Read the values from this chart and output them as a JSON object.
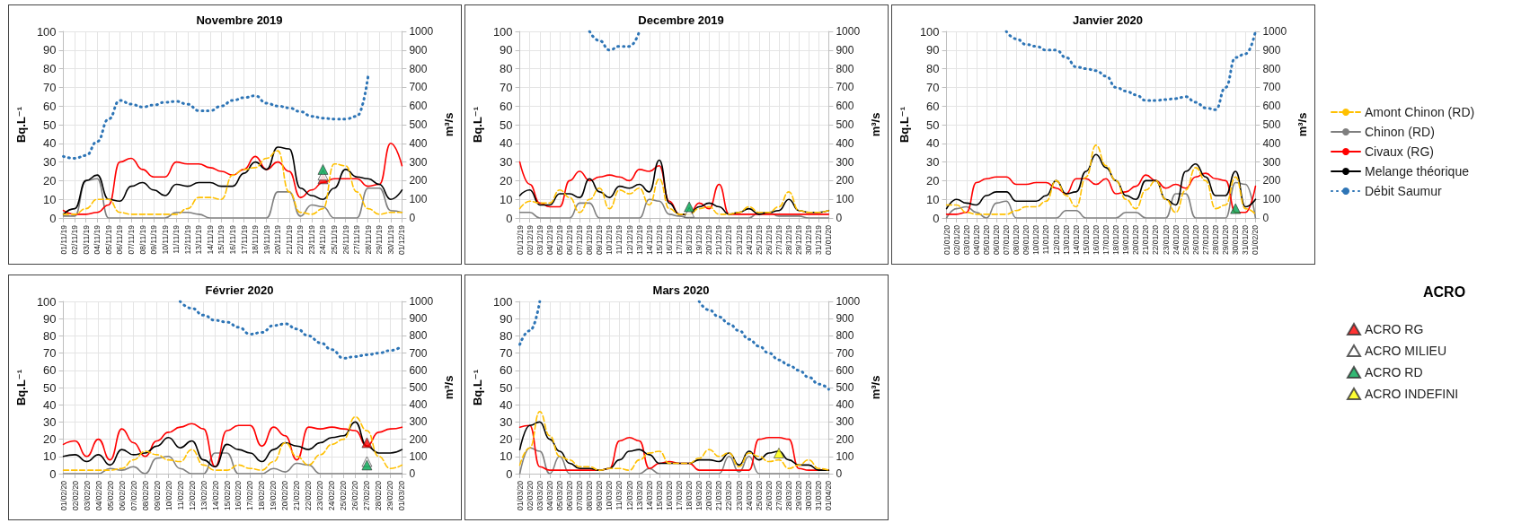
{
  "chart_data": [
    {
      "type": "line",
      "title": "Novembre 2019",
      "ylabel": "Bq.L⁻¹",
      "y2label": "m³/s",
      "ylim": [
        0,
        100
      ],
      "yticks": [
        0,
        10,
        20,
        30,
        40,
        50,
        60,
        70,
        80,
        90,
        100
      ],
      "y2lim": [
        0,
        1000
      ],
      "y2ticks": [
        0,
        100,
        200,
        300,
        400,
        500,
        600,
        700,
        800,
        900,
        1000
      ],
      "grid": true,
      "legend": "right",
      "legend_title": "ACRO",
      "categories": [
        "01/11/19",
        "02/11/19",
        "03/11/19",
        "04/11/19",
        "05/11/19",
        "06/11/19",
        "07/11/19",
        "08/11/19",
        "09/11/19",
        "10/11/19",
        "11/11/19",
        "12/11/19",
        "13/11/19",
        "14/11/19",
        "15/11/19",
        "16/11/19",
        "17/11/19",
        "18/11/19",
        "19/11/19",
        "20/11/19",
        "21/11/19",
        "22/11/19",
        "23/11/19",
        "24/11/19",
        "25/11/19",
        "26/11/19",
        "27/11/19",
        "28/11/19",
        "29/11/19",
        "30/11/19",
        "01/12/19"
      ],
      "series": [
        {
          "name": "Amont Chinon (RD)",
          "color": "#ffc000",
          "line_style": "dashed",
          "values": [
            2,
            2,
            5,
            10,
            10,
            3,
            2,
            2,
            2,
            2,
            2,
            5,
            11,
            11,
            10,
            23,
            26,
            27,
            32,
            36,
            14,
            3,
            2,
            5,
            29,
            28,
            14,
            5,
            2,
            3,
            3
          ]
        },
        {
          "name": "Chinon (RD)",
          "color": "#7f7f7f",
          "line_style": "solid",
          "values": [
            1,
            1,
            20,
            21,
            0,
            0,
            0,
            0,
            0,
            0,
            3,
            3,
            2,
            0,
            0,
            0,
            0,
            0,
            0,
            14,
            14,
            1,
            7,
            6,
            0,
            0,
            0,
            16,
            16,
            4,
            3
          ]
        },
        {
          "name": "Civaux (RG)",
          "color": "#ff0000",
          "line_style": "solid",
          "values": [
            4,
            2,
            2,
            3,
            7,
            30,
            32,
            26,
            22,
            22,
            30,
            29,
            29,
            27,
            25,
            23,
            26,
            33,
            26,
            30,
            25,
            11,
            15,
            19,
            21,
            21,
            21,
            17,
            18,
            40,
            28
          ]
        },
        {
          "name": "Melange théorique",
          "color": "#000000",
          "line_style": "solid",
          "values": [
            2,
            5,
            20,
            23,
            10,
            9,
            17,
            19,
            15,
            12,
            18,
            17,
            19,
            19,
            17,
            17,
            24,
            30,
            26,
            38,
            37,
            16,
            12,
            10,
            16,
            26,
            22,
            21,
            18,
            10,
            15
          ]
        },
        {
          "name": "Débit Saumur",
          "color": "#2e75b6",
          "line_style": "dotted",
          "axis": "y2",
          "values": [
            330,
            320,
            335,
            410,
            530,
            630,
            610,
            595,
            605,
            620,
            625,
            610,
            575,
            575,
            600,
            630,
            645,
            655,
            615,
            600,
            590,
            570,
            545,
            535,
            530,
            530,
            545,
            760,
            null,
            null,
            null
          ]
        },
        {
          "name": "ACRO RG",
          "type": "scatter",
          "marker": "triangle",
          "color": "#ff0000",
          "x": [
            "24/11/19"
          ],
          "values": [
            21
          ]
        },
        {
          "name": "ACRO MILIEU",
          "type": "scatter",
          "marker": "triangle",
          "color": "#ffffff",
          "x": [
            "24/11/19"
          ],
          "values": [
            23
          ]
        },
        {
          "name": "ACRO RD",
          "type": "scatter",
          "marker": "triangle",
          "color": "#00a651",
          "x": [
            "24/11/19"
          ],
          "values": [
            26
          ]
        }
      ]
    },
    {
      "type": "line",
      "title": "Decembre 2019",
      "ylabel": "Bq.L⁻¹",
      "y2label": "m³/s",
      "ylim": [
        0,
        100
      ],
      "yticks": [
        0,
        10,
        20,
        30,
        40,
        50,
        60,
        70,
        80,
        90,
        100
      ],
      "y2lim": [
        0,
        1000
      ],
      "y2ticks": [
        0,
        100,
        200,
        300,
        400,
        500,
        600,
        700,
        800,
        900,
        1000
      ],
      "grid": true,
      "categories": [
        "01/12/19",
        "02/12/19",
        "03/12/19",
        "04/12/19",
        "05/12/19",
        "06/12/19",
        "07/12/19",
        "08/12/19",
        "09/12/19",
        "10/12/19",
        "11/12/19",
        "12/12/19",
        "13/12/19",
        "14/12/19",
        "15/12/19",
        "16/12/19",
        "17/12/19",
        "18/12/19",
        "19/12/19",
        "20/12/19",
        "21/12/19",
        "22/12/19",
        "23/12/19",
        "24/12/19",
        "25/12/19",
        "26/12/19",
        "27/12/19",
        "28/12/19",
        "29/12/19",
        "30/12/19",
        "31/12/19",
        "01/01/20"
      ],
      "series": [
        {
          "name": "Amont Chinon (RD)",
          "color": "#ffc000",
          "line_style": "dashed",
          "values": [
            5,
            9,
            8,
            8,
            15,
            11,
            3,
            10,
            16,
            5,
            15,
            13,
            16,
            7,
            21,
            5,
            2,
            2,
            5,
            6,
            2,
            2,
            3,
            6,
            3,
            3,
            6,
            14,
            4,
            3,
            3,
            4
          ]
        },
        {
          "name": "Chinon (RD)",
          "color": "#7f7f7f",
          "line_style": "solid",
          "values": [
            3,
            3,
            0,
            0,
            0,
            0,
            8,
            8,
            0,
            0,
            0,
            0,
            0,
            10,
            9,
            2,
            1,
            0,
            0,
            0,
            0,
            0,
            0,
            0,
            3,
            3,
            1,
            1,
            1,
            0,
            0,
            0
          ]
        },
        {
          "name": "Civaux (RG)",
          "color": "#ff0000",
          "line_style": "solid",
          "values": [
            30,
            18,
            8,
            6,
            6,
            20,
            25,
            20,
            22,
            23,
            22,
            20,
            26,
            25,
            28,
            9,
            2,
            2,
            8,
            5,
            18,
            2,
            2,
            2,
            2,
            2,
            2,
            2,
            2,
            2,
            2,
            2
          ]
        },
        {
          "name": "Melange théorique",
          "color": "#000000",
          "line_style": "solid",
          "values": [
            12,
            15,
            7,
            7,
            13,
            13,
            11,
            21,
            14,
            11,
            17,
            16,
            18,
            14,
            31,
            8,
            2,
            2,
            6,
            8,
            6,
            2,
            3,
            5,
            2,
            3,
            4,
            10,
            4,
            3,
            3,
            4
          ]
        },
        {
          "name": "Débit Saumur",
          "color": "#2e75b6",
          "line_style": "dotted",
          "axis": "y2",
          "values": [
            null,
            null,
            null,
            null,
            null,
            null,
            null,
            1000,
            950,
            900,
            920,
            920,
            1000,
            null,
            null,
            null,
            null,
            null,
            null,
            null,
            null,
            null,
            null,
            null,
            null,
            null,
            null,
            null,
            null,
            null,
            null,
            null
          ]
        },
        {
          "name": "ACRO MILIEU",
          "type": "scatter",
          "marker": "triangle",
          "color": "#ffffff",
          "x": [
            "18/12/19"
          ],
          "values": [
            3
          ]
        },
        {
          "name": "ACRO RD",
          "type": "scatter",
          "marker": "triangle",
          "color": "#00a651",
          "x": [
            "18/12/19"
          ],
          "values": [
            6
          ]
        }
      ]
    },
    {
      "type": "line",
      "title": "Janvier 2020",
      "ylabel": "Bq.L⁻¹",
      "y2label": "m³/s",
      "ylim": [
        0,
        100
      ],
      "yticks": [
        0,
        10,
        20,
        30,
        40,
        50,
        60,
        70,
        80,
        90,
        100
      ],
      "y2lim": [
        0,
        1000
      ],
      "y2ticks": [
        0,
        100,
        200,
        300,
        400,
        500,
        600,
        700,
        800,
        900,
        1000
      ],
      "grid": true,
      "categories": [
        "01/01/20",
        "02/01/20",
        "03/01/20",
        "04/01/20",
        "05/01/20",
        "06/01/20",
        "07/01/20",
        "08/01/20",
        "09/01/20",
        "10/01/20",
        "11/01/20",
        "12/01/20",
        "13/01/20",
        "14/01/20",
        "15/01/20",
        "16/01/20",
        "17/01/20",
        "18/01/20",
        "19/01/20",
        "20/01/20",
        "21/01/20",
        "22/01/20",
        "23/01/20",
        "24/01/20",
        "25/01/20",
        "26/01/20",
        "27/01/20",
        "28/01/20",
        "29/01/20",
        "30/01/20",
        "31/01/20",
        "01/02/20"
      ],
      "series": [
        {
          "name": "Amont Chinon (RD)",
          "color": "#ffc000",
          "line_style": "dashed",
          "values": [
            7,
            7,
            3,
            2,
            2,
            2,
            2,
            4,
            6,
            6,
            9,
            20,
            12,
            6,
            22,
            39,
            28,
            20,
            10,
            5,
            15,
            20,
            10,
            3,
            15,
            27,
            20,
            5,
            7,
            22,
            5,
            2
          ]
        },
        {
          "name": "Chinon (RD)",
          "color": "#7f7f7f",
          "line_style": "solid",
          "values": [
            0,
            5,
            6,
            3,
            0,
            8,
            9,
            0,
            0,
            0,
            0,
            0,
            4,
            4,
            0,
            0,
            0,
            0,
            3,
            3,
            0,
            0,
            0,
            13,
            13,
            0,
            0,
            0,
            0,
            19,
            18,
            0
          ]
        },
        {
          "name": "Civaux (RG)",
          "color": "#ff0000",
          "line_style": "solid",
          "values": [
            2,
            2,
            3,
            19,
            21,
            22,
            22,
            18,
            18,
            19,
            19,
            16,
            13,
            21,
            21,
            18,
            21,
            13,
            14,
            17,
            23,
            20,
            16,
            18,
            16,
            22,
            24,
            21,
            20,
            3,
            3,
            17
          ]
        },
        {
          "name": "Melange théorique",
          "color": "#000000",
          "line_style": "solid",
          "values": [
            5,
            10,
            8,
            7,
            12,
            14,
            14,
            9,
            9,
            9,
            12,
            20,
            13,
            14,
            25,
            34,
            27,
            20,
            12,
            10,
            20,
            20,
            10,
            7,
            25,
            29,
            22,
            12,
            12,
            25,
            6,
            10
          ]
        },
        {
          "name": "Débit Saumur",
          "color": "#2e75b6",
          "line_style": "dotted",
          "axis": "y2",
          "values": [
            null,
            null,
            null,
            null,
            null,
            null,
            1000,
            960,
            930,
            920,
            900,
            900,
            860,
            810,
            800,
            790,
            760,
            700,
            680,
            660,
            630,
            630,
            635,
            640,
            650,
            620,
            590,
            580,
            700,
            860,
            880,
            1000
          ]
        },
        {
          "name": "ACRO RD",
          "type": "scatter",
          "marker": "triangle",
          "color": "#00a651",
          "x": [
            "30/01/20"
          ],
          "values": [
            5
          ]
        }
      ]
    },
    {
      "type": "line",
      "title": "Février 2020",
      "ylabel": "Bq.L⁻¹",
      "y2label": "m³/s",
      "ylim": [
        0,
        100
      ],
      "yticks": [
        0,
        10,
        20,
        30,
        40,
        50,
        60,
        70,
        80,
        90,
        100
      ],
      "y2lim": [
        0,
        1000
      ],
      "y2ticks": [
        0,
        100,
        200,
        300,
        400,
        500,
        600,
        700,
        800,
        900,
        1000
      ],
      "grid": true,
      "categories": [
        "01/02/20",
        "02/02/20",
        "03/02/20",
        "04/02/20",
        "05/02/20",
        "06/02/20",
        "07/02/20",
        "08/02/20",
        "09/02/20",
        "10/02/20",
        "11/02/20",
        "12/02/20",
        "13/02/20",
        "14/02/20",
        "15/02/20",
        "16/02/20",
        "17/02/20",
        "18/02/20",
        "19/02/20",
        "20/02/20",
        "21/02/20",
        "22/02/20",
        "23/02/20",
        "24/02/20",
        "25/02/20",
        "26/02/20",
        "27/02/20",
        "28/02/20",
        "29/02/20",
        "01/03/20"
      ],
      "series": [
        {
          "name": "Amont Chinon (RD)",
          "color": "#ffc000",
          "line_style": "dashed",
          "values": [
            2,
            2,
            2,
            2,
            2,
            3,
            8,
            13,
            11,
            8,
            7,
            14,
            5,
            2,
            2,
            5,
            3,
            2,
            7,
            18,
            10,
            5,
            11,
            17,
            20,
            33,
            25,
            10,
            3,
            5
          ]
        },
        {
          "name": "Chinon (RD)",
          "color": "#7f7f7f",
          "line_style": "solid",
          "values": [
            0,
            0,
            0,
            0,
            3,
            2,
            4,
            0,
            9,
            10,
            3,
            0,
            0,
            12,
            12,
            0,
            0,
            0,
            3,
            1,
            6,
            5,
            0,
            0,
            0,
            0,
            0,
            0,
            0,
            0
          ]
        },
        {
          "name": "Civaux (RG)",
          "color": "#ff0000",
          "line_style": "solid",
          "values": [
            17,
            19,
            10,
            20,
            8,
            26,
            18,
            10,
            19,
            24,
            27,
            29,
            26,
            4,
            25,
            28,
            28,
            16,
            27,
            22,
            8,
            27,
            26,
            27,
            26,
            25,
            16,
            24,
            26,
            27
          ]
        },
        {
          "name": "Melange théorique",
          "color": "#000000",
          "line_style": "solid",
          "values": [
            10,
            11,
            7,
            11,
            5,
            14,
            11,
            12,
            16,
            21,
            15,
            19,
            8,
            4,
            17,
            14,
            12,
            7,
            14,
            18,
            16,
            14,
            18,
            21,
            22,
            30,
            16,
            12,
            12,
            14
          ]
        },
        {
          "name": "Débit Saumur",
          "color": "#2e75b6",
          "line_style": "dotted",
          "axis": "y2",
          "values": [
            null,
            null,
            null,
            null,
            null,
            null,
            null,
            null,
            null,
            null,
            1000,
            960,
            920,
            890,
            880,
            850,
            810,
            820,
            860,
            870,
            840,
            800,
            760,
            720,
            670,
            680,
            690,
            700,
            715,
            740
          ]
        },
        {
          "name": "ACRO RG",
          "type": "scatter",
          "marker": "triangle",
          "color": "#ff0000",
          "x": [
            "27/02/20"
          ],
          "values": [
            18
          ]
        },
        {
          "name": "ACRO MILIEU",
          "type": "scatter",
          "marker": "triangle",
          "color": "#ffffff",
          "x": [
            "27/02/20"
          ],
          "values": [
            7
          ]
        },
        {
          "name": "ACRO RD",
          "type": "scatter",
          "marker": "triangle",
          "color": "#00a651",
          "x": [
            "27/02/20"
          ],
          "values": [
            5
          ]
        }
      ]
    },
    {
      "type": "line",
      "title": "Mars 2020",
      "ylabel": "Bq.L⁻¹",
      "y2label": "m³/s",
      "ylim": [
        0,
        100
      ],
      "yticks": [
        0,
        10,
        20,
        30,
        40,
        50,
        60,
        70,
        80,
        90,
        100
      ],
      "y2lim": [
        0,
        1000
      ],
      "y2ticks": [
        0,
        100,
        200,
        300,
        400,
        500,
        600,
        700,
        800,
        900,
        1000
      ],
      "grid": true,
      "categories": [
        "01/03/20",
        "02/03/20",
        "03/03/20",
        "04/03/20",
        "05/03/20",
        "06/03/20",
        "07/03/20",
        "08/03/20",
        "09/03/20",
        "10/03/20",
        "11/03/20",
        "12/03/20",
        "13/03/20",
        "14/03/20",
        "15/03/20",
        "16/03/20",
        "17/03/20",
        "18/03/20",
        "19/03/20",
        "20/03/20",
        "21/03/20",
        "22/03/20",
        "23/03/20",
        "24/03/20",
        "25/03/20",
        "26/03/20",
        "27/03/20",
        "28/03/20",
        "29/03/20",
        "30/03/20",
        "31/03/20",
        "01/04/20"
      ],
      "series": [
        {
          "name": "Amont Chinon (RD)",
          "color": "#ffc000",
          "line_style": "dashed",
          "values": [
            5,
            15,
            36,
            22,
            10,
            8,
            4,
            4,
            2,
            3,
            3,
            2,
            8,
            12,
            13,
            6,
            6,
            6,
            9,
            14,
            10,
            12,
            4,
            12,
            10,
            7,
            8,
            3,
            5,
            8,
            3,
            2
          ]
        },
        {
          "name": "Chinon (RD)",
          "color": "#7f7f7f",
          "line_style": "solid",
          "values": [
            0,
            15,
            13,
            0,
            10,
            0,
            0,
            0,
            0,
            0,
            0,
            0,
            0,
            3,
            0,
            0,
            0,
            0,
            0,
            0,
            0,
            10,
            1,
            10,
            0,
            0,
            0,
            0,
            0,
            0,
            0,
            0
          ]
        },
        {
          "name": "Civaux (RG)",
          "color": "#ff0000",
          "line_style": "solid",
          "values": [
            27,
            28,
            4,
            2,
            2,
            2,
            2,
            2,
            2,
            3,
            19,
            21,
            19,
            3,
            6,
            7,
            6,
            6,
            2,
            2,
            2,
            2,
            2,
            2,
            20,
            21,
            21,
            20,
            3,
            2,
            2,
            2
          ]
        },
        {
          "name": "Melange théorique",
          "color": "#000000",
          "line_style": "solid",
          "values": [
            14,
            28,
            30,
            20,
            13,
            6,
            3,
            3,
            2,
            3,
            8,
            13,
            14,
            11,
            6,
            6,
            6,
            6,
            8,
            8,
            7,
            12,
            5,
            13,
            8,
            12,
            13,
            8,
            5,
            5,
            2,
            2
          ]
        },
        {
          "name": "Débit Saumur",
          "color": "#2e75b6",
          "line_style": "dotted",
          "axis": "y2",
          "values": [
            750,
            830,
            1000,
            null,
            null,
            null,
            null,
            null,
            null,
            null,
            null,
            null,
            null,
            null,
            null,
            null,
            null,
            null,
            1000,
            950,
            910,
            870,
            830,
            780,
            740,
            700,
            660,
            630,
            600,
            560,
            520,
            490
          ]
        },
        {
          "name": "ACRO INDEFINI",
          "type": "scatter",
          "marker": "triangle",
          "color": "#ffff00",
          "x": [
            "27/03/20"
          ],
          "values": [
            12
          ]
        }
      ]
    }
  ]
}
